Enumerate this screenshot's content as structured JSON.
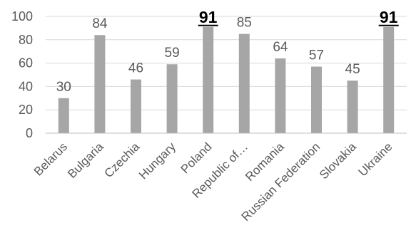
{
  "chart_data": {
    "type": "bar",
    "categories": [
      "Belarus",
      "Bulgaria",
      "Czechia",
      "Hungary",
      "Poland",
      "Republic of…",
      "Romania",
      "Russian Federation",
      "Slovakia",
      "Ukraine"
    ],
    "values": [
      30,
      84,
      46,
      59,
      91,
      85,
      64,
      57,
      45,
      91
    ],
    "data_labels": [
      "30",
      "84",
      "46",
      "59",
      "91",
      "85",
      "64",
      "57",
      "45",
      "91"
    ],
    "highlighted": [
      false,
      false,
      false,
      false,
      true,
      false,
      false,
      false,
      false,
      true
    ],
    "yticks": [
      "0",
      "20",
      "40",
      "60",
      "80",
      "100"
    ],
    "ylim": [
      0,
      100
    ],
    "title": "",
    "xlabel": "",
    "ylabel": "",
    "grid": true,
    "bar_color": "#a6a6a6",
    "highlight_label_color": "#000000"
  }
}
